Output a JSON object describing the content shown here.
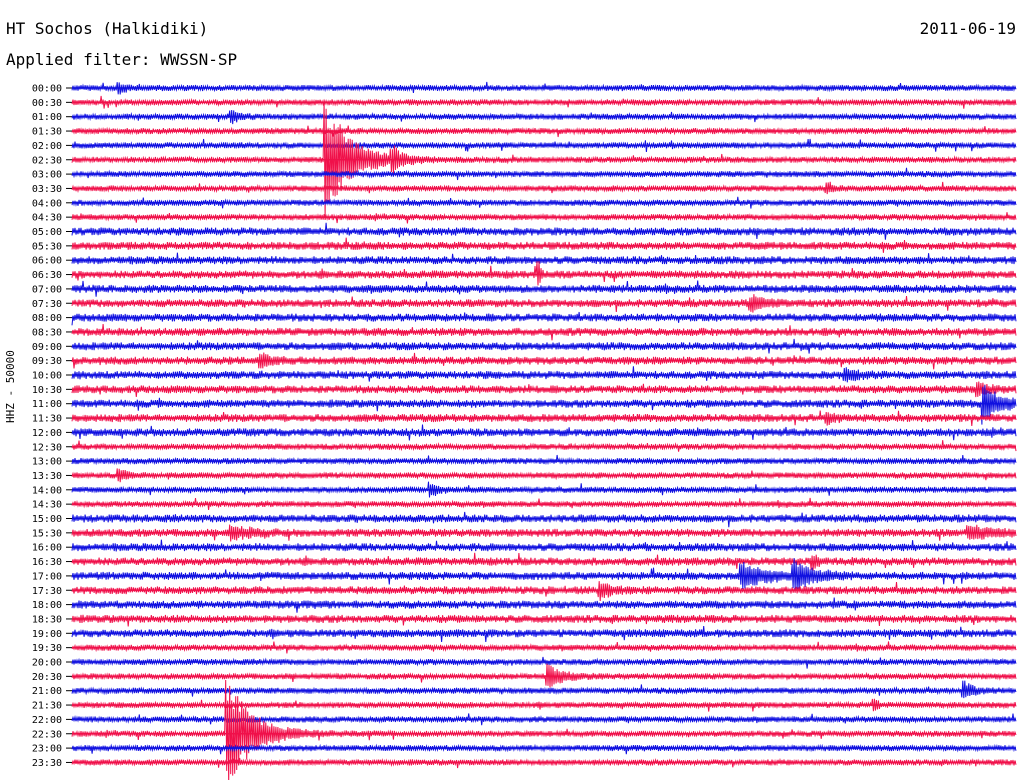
{
  "header": {
    "station": "HT Sochos (Halkidiki)",
    "date": "2011-06-19",
    "filter": "Applied filter: WWSSN-SP"
  },
  "chart_data": {
    "type": "line",
    "title": "HT Sochos (Halkidiki)",
    "subtitle": "Applied filter: WWSSN-SP",
    "ylabel": "HHZ - 50000",
    "xlabel": "",
    "grid": false,
    "colors": [
      "#1010e0",
      "#f0104a"
    ],
    "row_labels": [
      "00:00",
      "00:30",
      "01:00",
      "01:30",
      "02:00",
      "02:30",
      "03:00",
      "03:30",
      "04:00",
      "04:30",
      "05:00",
      "05:30",
      "06:00",
      "06:30",
      "07:00",
      "07:30",
      "08:00",
      "08:30",
      "09:00",
      "09:30",
      "10:00",
      "10:30",
      "11:00",
      "11:30",
      "12:00",
      "12:30",
      "13:00",
      "13:30",
      "14:00",
      "14:30",
      "15:00",
      "15:30",
      "16:00",
      "16:30",
      "17:00",
      "17:30",
      "18:00",
      "18:30",
      "19:00",
      "19:30",
      "20:00",
      "20:30",
      "21:00",
      "21:30",
      "22:00",
      "22:30",
      "23:00",
      "23:30"
    ],
    "noise_level": [
      3,
      3,
      3,
      3,
      3,
      3,
      3,
      3,
      3,
      3,
      4,
      4,
      4,
      4,
      4,
      4,
      4,
      4,
      4,
      4,
      4,
      4,
      4,
      4,
      4,
      3,
      3,
      3,
      3,
      3,
      4,
      4,
      4,
      4,
      4,
      4,
      4,
      4,
      4,
      3,
      3,
      3,
      3,
      3,
      3,
      3,
      3,
      3
    ],
    "events": [
      {
        "row": 5,
        "x": 0.27,
        "amp": 58,
        "decay": 0.025,
        "name": "large"
      },
      {
        "row": 5,
        "x": 0.34,
        "amp": 10,
        "decay": 0.01
      },
      {
        "row": 22,
        "x": 0.966,
        "amp": 20,
        "decay": 0.015
      },
      {
        "row": 34,
        "x": 0.71,
        "amp": 14,
        "decay": 0.02
      },
      {
        "row": 34,
        "x": 0.765,
        "amp": 14,
        "decay": 0.02
      },
      {
        "row": 35,
        "x": 0.56,
        "amp": 8,
        "decay": 0.01
      },
      {
        "row": 41,
        "x": 0.505,
        "amp": 11,
        "decay": 0.015
      },
      {
        "row": 42,
        "x": 0.945,
        "amp": 8,
        "decay": 0.01
      },
      {
        "row": 45,
        "x": 0.165,
        "amp": 55,
        "decay": 0.025
      },
      {
        "row": 0,
        "x": 0.05,
        "amp": 5,
        "decay": 0.008
      },
      {
        "row": 2,
        "x": 0.17,
        "amp": 6,
        "decay": 0.008
      },
      {
        "row": 7,
        "x": 0.8,
        "amp": 4,
        "decay": 0.006
      },
      {
        "row": 13,
        "x": 0.495,
        "amp": 10,
        "decay": 0.002
      },
      {
        "row": 15,
        "x": 0.72,
        "amp": 7,
        "decay": 0.015
      },
      {
        "row": 19,
        "x": 0.2,
        "amp": 7,
        "decay": 0.012
      },
      {
        "row": 20,
        "x": 0.82,
        "amp": 6,
        "decay": 0.012
      },
      {
        "row": 21,
        "x": 0.96,
        "amp": 6,
        "decay": 0.01
      },
      {
        "row": 23,
        "x": 0.8,
        "amp": 5,
        "decay": 0.008
      },
      {
        "row": 27,
        "x": 0.05,
        "amp": 6,
        "decay": 0.01
      },
      {
        "row": 28,
        "x": 0.38,
        "amp": 6,
        "decay": 0.01
      },
      {
        "row": 31,
        "x": 0.17,
        "amp": 6,
        "decay": 0.02
      },
      {
        "row": 31,
        "x": 0.95,
        "amp": 7,
        "decay": 0.02
      },
      {
        "row": 33,
        "x": 0.785,
        "amp": 7,
        "decay": 0.005
      },
      {
        "row": 43,
        "x": 0.85,
        "amp": 6,
        "decay": 0.004
      }
    ]
  }
}
